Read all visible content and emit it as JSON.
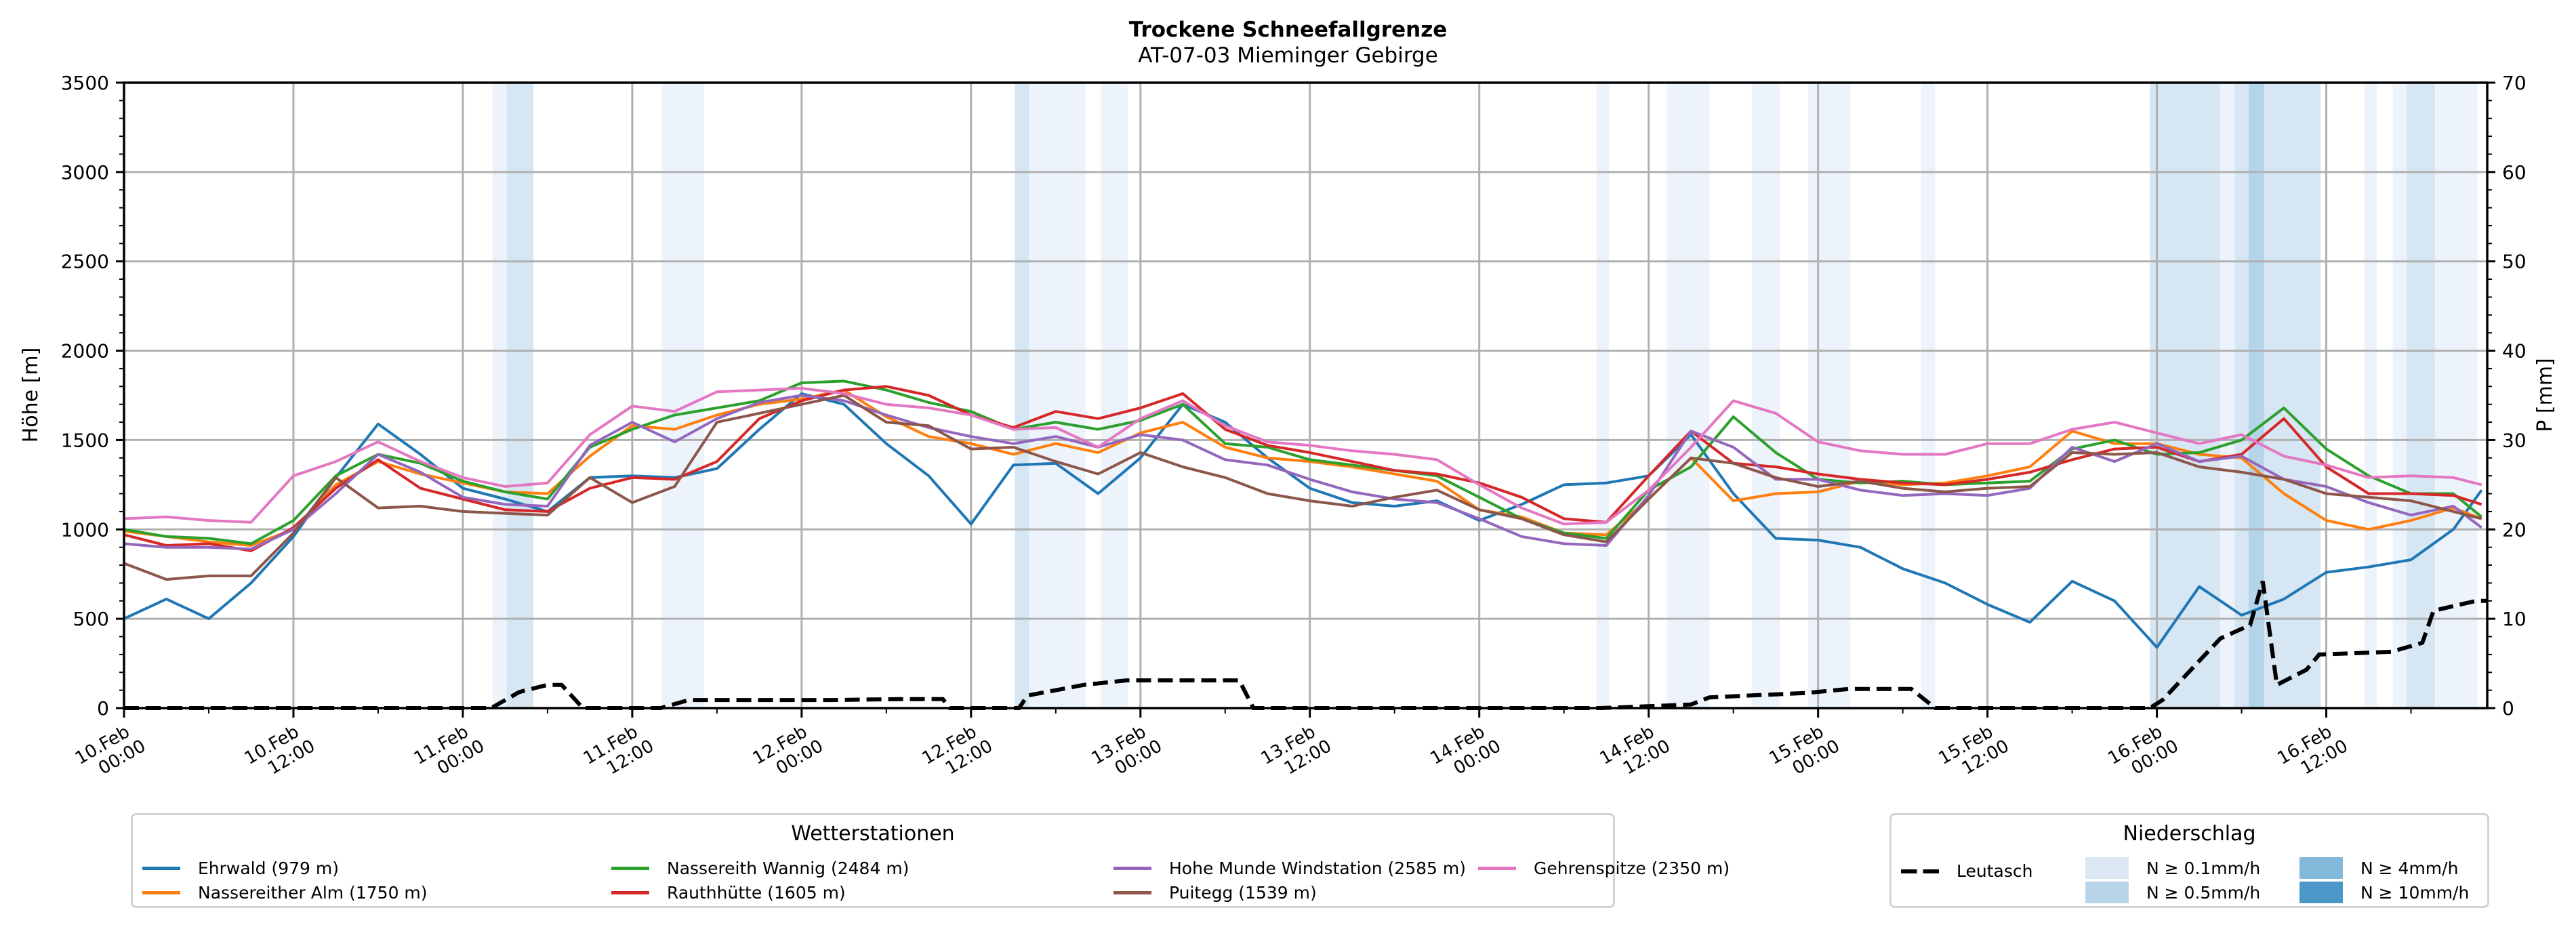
{
  "chart_data": {
    "type": "line",
    "title": "Trockene Schneefallgrenze",
    "subtitle": "AT-07-03 Mieminger Gebirge",
    "xlabel": "",
    "ylabel": "Höhe [m]",
    "y2label": "P [mm]",
    "ylim": [
      0,
      3500
    ],
    "y2lim": [
      0,
      70
    ],
    "yticks": [
      "0",
      "500",
      "1000",
      "1500",
      "2000",
      "2500",
      "3000",
      "3500"
    ],
    "y2ticks": [
      "0",
      "10",
      "20",
      "30",
      "40",
      "50",
      "60",
      "70"
    ],
    "grid": true,
    "x_unit": "hours since 10.Feb 00:00",
    "xlim": [
      0,
      167.4
    ],
    "xticks": [
      {
        "h": 0,
        "label": [
          "10.Feb",
          "00:00"
        ]
      },
      {
        "h": 12,
        "label": [
          "10.Feb",
          "12:00"
        ]
      },
      {
        "h": 24,
        "label": [
          "11.Feb",
          "00:00"
        ]
      },
      {
        "h": 36,
        "label": [
          "11.Feb",
          "12:00"
        ]
      },
      {
        "h": 48,
        "label": [
          "12.Feb",
          "00:00"
        ]
      },
      {
        "h": 60,
        "label": [
          "12.Feb",
          "12:00"
        ]
      },
      {
        "h": 72,
        "label": [
          "13.Feb",
          "00:00"
        ]
      },
      {
        "h": 84,
        "label": [
          "13.Feb",
          "12:00"
        ]
      },
      {
        "h": 96,
        "label": [
          "14.Feb",
          "00:00"
        ]
      },
      {
        "h": 108,
        "label": [
          "14.Feb",
          "12:00"
        ]
      },
      {
        "h": 120,
        "label": [
          "15.Feb",
          "00:00"
        ]
      },
      {
        "h": 132,
        "label": [
          "15.Feb",
          "12:00"
        ]
      },
      {
        "h": 144,
        "label": [
          "16.Feb",
          "00:00"
        ]
      },
      {
        "h": 156,
        "label": [
          "16.Feb",
          "12:00"
        ]
      }
    ],
    "x": [
      0,
      3,
      6,
      9,
      12,
      15,
      18,
      21,
      24,
      27,
      30,
      33,
      36,
      39,
      42,
      45,
      48,
      51,
      54,
      57,
      60,
      63,
      66,
      69,
      72,
      75,
      78,
      81,
      84,
      87,
      90,
      93,
      96,
      99,
      102,
      105,
      108,
      111,
      114,
      117,
      120,
      123,
      126,
      129,
      132,
      135,
      138,
      141,
      144,
      147,
      150,
      153,
      156,
      159,
      162,
      165,
      167
    ],
    "series": [
      {
        "name": "Ehrwald (979 m)",
        "color": "#1f77b4",
        "values": [
          500,
          610,
          500,
          700,
          960,
          1290,
          1590,
          1420,
          1230,
          1170,
          1100,
          1290,
          1300,
          1290,
          1340,
          1560,
          1760,
          1700,
          1480,
          1300,
          1030,
          1360,
          1370,
          1200,
          1400,
          1700,
          1600,
          1400,
          1230,
          1150,
          1130,
          1160,
          1050,
          1140,
          1250,
          1260,
          1300,
          1530,
          1200,
          950,
          940,
          900,
          780,
          700,
          580,
          480,
          710,
          600,
          340,
          680,
          520,
          610,
          760,
          790,
          830,
          1000,
          1220
        ]
      },
      {
        "name": "Nassereither Alm (1750 m)",
        "color": "#ff7f0e",
        "values": [
          990,
          960,
          930,
          910,
          1000,
          1250,
          1380,
          1310,
          1260,
          1210,
          1200,
          1410,
          1580,
          1560,
          1640,
          1700,
          1730,
          1780,
          1630,
          1520,
          1480,
          1420,
          1480,
          1430,
          1540,
          1600,
          1460,
          1400,
          1380,
          1350,
          1310,
          1270,
          1110,
          1070,
          980,
          970,
          1170,
          1400,
          1160,
          1200,
          1210,
          1270,
          1250,
          1260,
          1300,
          1350,
          1550,
          1480,
          1480,
          1420,
          1400,
          1200,
          1050,
          1000,
          1050,
          1120,
          1060
        ]
      },
      {
        "name": "Nassereith Wannig (2484 m)",
        "color": "#2ca02c",
        "values": [
          1000,
          960,
          950,
          920,
          1050,
          1300,
          1420,
          1370,
          1270,
          1210,
          1170,
          1460,
          1560,
          1640,
          1680,
          1720,
          1820,
          1830,
          1780,
          1710,
          1660,
          1560,
          1600,
          1560,
          1610,
          1700,
          1480,
          1460,
          1390,
          1360,
          1330,
          1300,
          1180,
          1060,
          980,
          950,
          1220,
          1350,
          1630,
          1430,
          1280,
          1260,
          1270,
          1250,
          1260,
          1270,
          1450,
          1500,
          1420,
          1430,
          1500,
          1680,
          1450,
          1300,
          1200,
          1200,
          1070
        ]
      },
      {
        "name": "Rauthhütte (1605 m)",
        "color": "#d62728",
        "values": [
          970,
          910,
          920,
          880,
          1010,
          1230,
          1390,
          1230,
          1170,
          1110,
          1100,
          1230,
          1290,
          1280,
          1380,
          1620,
          1720,
          1780,
          1800,
          1750,
          1640,
          1570,
          1660,
          1620,
          1680,
          1760,
          1560,
          1470,
          1430,
          1380,
          1330,
          1310,
          1260,
          1180,
          1060,
          1040,
          1300,
          1550,
          1370,
          1350,
          1310,
          1280,
          1260,
          1250,
          1280,
          1320,
          1390,
          1450,
          1460,
          1380,
          1420,
          1620,
          1350,
          1200,
          1200,
          1190,
          1140
        ]
      },
      {
        "name": "Hohe Munde Windstation (2585 m)",
        "color": "#9467bd",
        "values": [
          920,
          900,
          900,
          890,
          1000,
          1200,
          1420,
          1320,
          1180,
          1140,
          1130,
          1470,
          1600,
          1490,
          1620,
          1710,
          1750,
          1720,
          1640,
          1570,
          1520,
          1480,
          1520,
          1460,
          1530,
          1500,
          1390,
          1360,
          1280,
          1210,
          1170,
          1150,
          1060,
          960,
          920,
          910,
          1190,
          1550,
          1460,
          1280,
          1280,
          1220,
          1190,
          1200,
          1190,
          1230,
          1460,
          1380,
          1480,
          1380,
          1410,
          1280,
          1240,
          1150,
          1080,
          1130,
          1010
        ]
      },
      {
        "name": "Puitegg (1539 m)",
        "color": "#8c564b",
        "values": [
          810,
          720,
          740,
          740,
          980,
          1290,
          1120,
          1130,
          1100,
          1090,
          1080,
          1290,
          1150,
          1240,
          1600,
          1650,
          1700,
          1750,
          1600,
          1580,
          1450,
          1460,
          1380,
          1310,
          1430,
          1350,
          1290,
          1200,
          1160,
          1130,
          1180,
          1220,
          1110,
          1060,
          970,
          930,
          1170,
          1400,
          1370,
          1290,
          1240,
          1270,
          1230,
          1210,
          1230,
          1240,
          1430,
          1420,
          1430,
          1350,
          1320,
          1280,
          1200,
          1180,
          1160,
          1100,
          1060
        ]
      },
      {
        "name": "Gehrenspitze (2350 m)",
        "color": "#e377c2",
        "values": [
          1060,
          1070,
          1050,
          1040,
          1300,
          1380,
          1490,
          1380,
          1290,
          1240,
          1260,
          1530,
          1690,
          1660,
          1770,
          1780,
          1790,
          1760,
          1700,
          1680,
          1640,
          1560,
          1570,
          1460,
          1620,
          1720,
          1580,
          1490,
          1470,
          1440,
          1420,
          1390,
          1250,
          1120,
          1030,
          1040,
          1220,
          1460,
          1720,
          1650,
          1490,
          1440,
          1420,
          1420,
          1480,
          1480,
          1560,
          1600,
          1540,
          1480,
          1530,
          1410,
          1360,
          1290,
          1300,
          1290,
          1250
        ]
      }
    ],
    "precipitation": {
      "name": "Leutasch",
      "unit": "mm",
      "x": [
        0,
        26,
        28,
        30,
        31,
        32.5,
        38,
        40,
        45,
        50,
        55,
        58,
        58.5,
        63.4,
        64,
        68,
        71,
        79,
        80,
        104.6,
        111,
        112.3,
        119.2,
        122.2,
        126.6,
        128.3,
        143.5,
        144.4,
        148.5,
        150.6,
        151.5,
        152.5,
        154.6,
        155.5,
        160.6,
        162.8,
        163.6,
        166.6,
        167.4
      ],
      "values": [
        0,
        0,
        1.8,
        2.6,
        2.6,
        0,
        0,
        0.9,
        0.9,
        0.9,
        1.0,
        1.0,
        0,
        0,
        1.4,
        2.6,
        3.1,
        3.1,
        0,
        0,
        0.4,
        1.2,
        1.7,
        2.15,
        2.15,
        0,
        0,
        0.9,
        7.8,
        9.3,
        14.2,
        2.6,
        4.3,
        6.0,
        6.3,
        7.3,
        10.9,
        12.0,
        12.0
      ],
      "color": "#000000"
    },
    "intensity_bands": [
      {
        "from": 26.1,
        "to": 27.1,
        "level": "N ≥ 0.1mm/h"
      },
      {
        "from": 27.1,
        "to": 29.0,
        "level": "N ≥ 0.5mm/h"
      },
      {
        "from": 38.1,
        "to": 41.1,
        "level": "N ≥ 0.1mm/h"
      },
      {
        "from": 63.1,
        "to": 64.1,
        "level": "N ≥ 0.5mm/h"
      },
      {
        "from": 64.1,
        "to": 68.1,
        "level": "N ≥ 0.1mm/h"
      },
      {
        "from": 69.2,
        "to": 71.1,
        "level": "N ≥ 0.1mm/h"
      },
      {
        "from": 104.3,
        "to": 105.2,
        "level": "N ≥ 0.1mm/h"
      },
      {
        "from": 109.3,
        "to": 112.3,
        "level": "N ≥ 0.1mm/h"
      },
      {
        "from": 115.3,
        "to": 117.3,
        "level": "N ≥ 0.1mm/h"
      },
      {
        "from": 119.3,
        "to": 122.3,
        "level": "N ≥ 0.1mm/h"
      },
      {
        "from": 127.3,
        "to": 128.3,
        "level": "N ≥ 0.1mm/h"
      },
      {
        "from": 143.5,
        "to": 148.5,
        "level": "N ≥ 0.5mm/h"
      },
      {
        "from": 148.5,
        "to": 149.5,
        "level": "N ≥ 0.1mm/h"
      },
      {
        "from": 149.5,
        "to": 150.5,
        "level": "N ≥ 0.5mm/h"
      },
      {
        "from": 150.5,
        "to": 151.6,
        "level": "N ≥ 4mm/h"
      },
      {
        "from": 151.6,
        "to": 155.6,
        "level": "N ≥ 0.5mm/h"
      },
      {
        "from": 158.7,
        "to": 159.6,
        "level": "N ≥ 0.1mm/h"
      },
      {
        "from": 160.7,
        "to": 161.7,
        "level": "N ≥ 0.1mm/h"
      },
      {
        "from": 161.7,
        "to": 163.7,
        "level": "N ≥ 0.5mm/h"
      },
      {
        "from": 163.7,
        "to": 166.7,
        "level": "N ≥ 0.1mm/h"
      }
    ],
    "legend_stations": {
      "title": "Wetterstationen",
      "placement": "bottom-left"
    },
    "legend_precip": {
      "title": "Niederschlag",
      "placement": "bottom-right",
      "line_label": "Leutasch",
      "levels": [
        {
          "label": "N ≥ 0.1mm/h",
          "color": "#dce9f5"
        },
        {
          "label": "N ≥ 0.5mm/h",
          "color": "#b9d5ea"
        },
        {
          "label": "N ≥ 4mm/h",
          "color": "#82b8d9"
        },
        {
          "label": "N ≥ 10mm/h",
          "color": "#4b98c8"
        }
      ]
    }
  }
}
